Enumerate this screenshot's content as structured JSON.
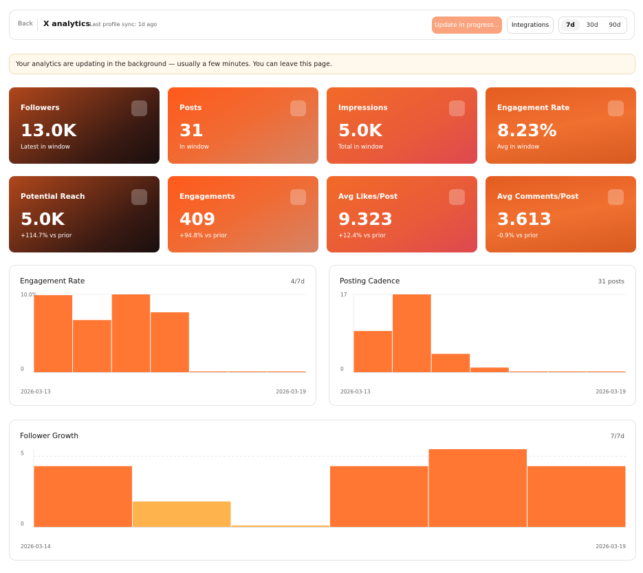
{
  "header": {
    "back": "Back",
    "title": "X analytics",
    "sync": "· Last profile sync: 1d ago",
    "update": "Update in progress...",
    "integrations": "Integrations",
    "ranges": [
      "7d",
      "30d",
      "90d"
    ]
  },
  "banner": "Your analytics are updating in the background — usually a few minutes. You can leave this page.",
  "cards": [
    {
      "label": "Followers",
      "value": "13.0K",
      "sub": "Latest in window"
    },
    {
      "label": "Posts",
      "value": "31",
      "sub": "In window"
    },
    {
      "label": "Impressions",
      "value": "5.0K",
      "sub": "Total in window"
    },
    {
      "label": "Engagement Rate",
      "value": "8.23%",
      "sub": "Avg in window"
    },
    {
      "label": "Potential Reach",
      "value": "5.0K",
      "sub": "+114.7% vs prior"
    },
    {
      "label": "Engagements",
      "value": "409",
      "sub": "+94.8% vs prior"
    },
    {
      "label": "Avg Likes/Post",
      "value": "9.323",
      "sub": "+12.4% vs prior"
    },
    {
      "label": "Avg Comments/Post",
      "value": "3.613",
      "sub": "-0.9% vs prior"
    }
  ],
  "chart_data": [
    {
      "type": "bar",
      "title": "Engagement Rate",
      "note": "4/7d",
      "categories": [
        "2026-03-13",
        null,
        null,
        null,
        null,
        null,
        "2026-03-19"
      ],
      "values": [
        9.9,
        6.7,
        10.0,
        7.7,
        0,
        0,
        0
      ],
      "color": "#ff7733",
      "ylim": [
        0,
        10
      ],
      "yticks": [
        0,
        {
          "value": 10,
          "label": "10.0%"
        }
      ]
    },
    {
      "type": "bar",
      "title": "Posting Cadence",
      "note": "31 posts",
      "categories": [
        "2026-03-13",
        null,
        null,
        null,
        null,
        null,
        "2026-03-19"
      ],
      "values": [
        9,
        17,
        4,
        1,
        0,
        0,
        0
      ],
      "color": "#ff7733",
      "ylim": [
        0,
        17
      ],
      "yticks": [
        0,
        17
      ]
    },
    {
      "type": "bar",
      "title": "Follower Growth",
      "note": "7/7d",
      "categories": [
        "2026-03-14",
        null,
        null,
        null,
        null,
        "2026-03-19"
      ],
      "values": [
        4.3,
        1.8,
        0.1,
        4.3,
        5.5,
        4.3
      ],
      "colors": [
        "#ff7733",
        "#ffb34d",
        "#ffb34d",
        "#ff7733",
        "#ff7733",
        "#ff7733"
      ],
      "ylim": [
        0,
        5.5
      ],
      "yticks": [
        0,
        5
      ],
      "grid": true
    }
  ]
}
